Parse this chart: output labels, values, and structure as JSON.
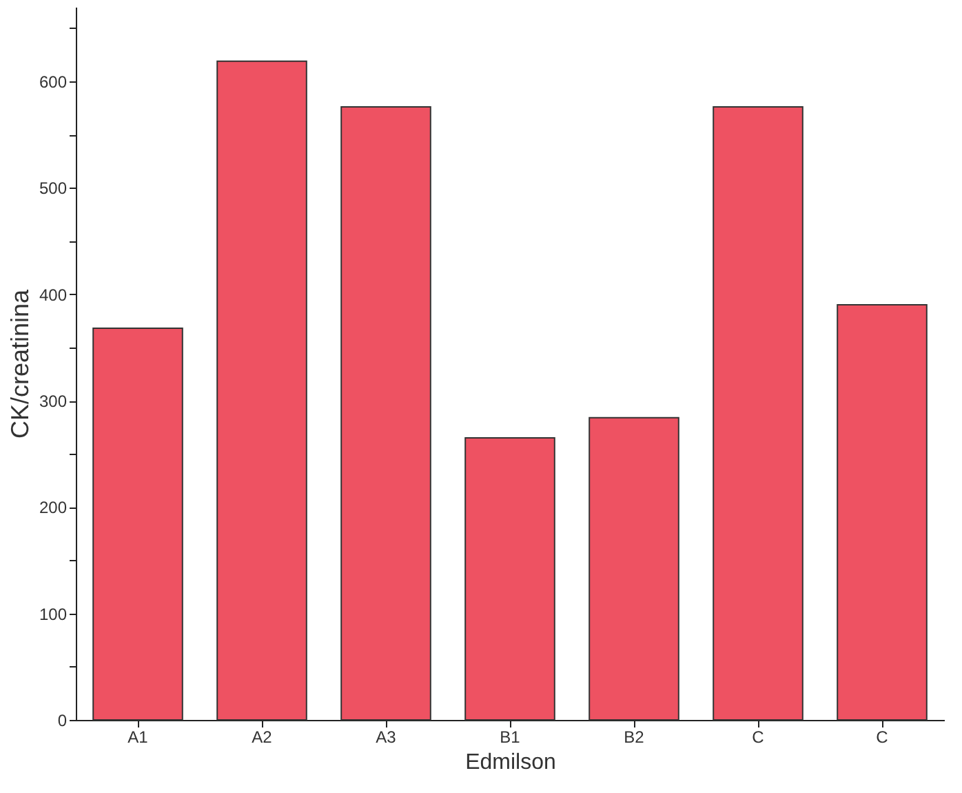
{
  "chart_data": {
    "type": "bar",
    "xlabel": "Edmilson",
    "ylabel": "CK/creatinina",
    "categories": [
      "A1",
      "A2",
      "A3",
      "B1",
      "B2",
      "C",
      "C"
    ],
    "values": [
      368,
      619,
      576,
      265,
      284,
      576,
      390
    ],
    "color": "#ee5262",
    "ylim": [
      0,
      670
    ],
    "yticks": [
      0,
      {
        "value": 50,
        "label": null
      },
      100,
      {
        "value": 150,
        "label": null
      },
      200,
      {
        "value": 250,
        "label": null
      },
      300,
      {
        "value": 350,
        "label": null
      },
      400,
      {
        "value": 450,
        "label": null
      },
      500,
      {
        "value": 550,
        "label": null
      },
      600,
      {
        "value": 650,
        "label": null
      }
    ],
    "grid": false
  }
}
